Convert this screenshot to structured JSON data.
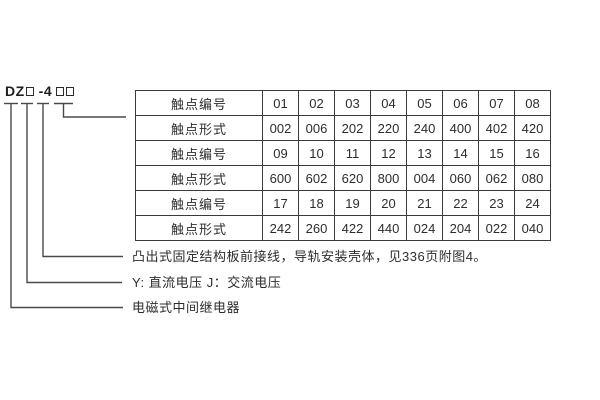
{
  "model_designation": {
    "prefix": "DZ",
    "placeholder_symbol": "□",
    "series": "-4",
    "placeholder_after_prefix": 1,
    "suffix_placeholders": 2
  },
  "table": {
    "rows": [
      {
        "label": "触点编号",
        "values": [
          "01",
          "02",
          "03",
          "04",
          "05",
          "06",
          "07",
          "08"
        ]
      },
      {
        "label": "触点形式",
        "values": [
          "002",
          "006",
          "202",
          "220",
          "240",
          "400",
          "402",
          "420"
        ]
      },
      {
        "label": "触点编号",
        "values": [
          "09",
          "10",
          "11",
          "12",
          "13",
          "14",
          "15",
          "16"
        ]
      },
      {
        "label": "触点形式",
        "values": [
          "600",
          "602",
          "620",
          "800",
          "004",
          "060",
          "062",
          "080"
        ]
      },
      {
        "label": "触点编号",
        "values": [
          "17",
          "18",
          "19",
          "20",
          "21",
          "22",
          "23",
          "24"
        ]
      },
      {
        "label": "触点形式",
        "values": [
          "242",
          "260",
          "422",
          "440",
          "024",
          "204",
          "022",
          "040"
        ]
      }
    ]
  },
  "legend": [
    {
      "text": "凸出式固定结构板前接线，导轨安装壳体，见336页附图4。"
    },
    {
      "text": "Y: 直流电压  J：交流电压"
    },
    {
      "text": "电磁式中间继电器"
    }
  ],
  "colors": {
    "background": "#ffffff",
    "line": "#4a4a4a",
    "table_border": "#3a3a3a",
    "text": "#2d2d2d"
  }
}
